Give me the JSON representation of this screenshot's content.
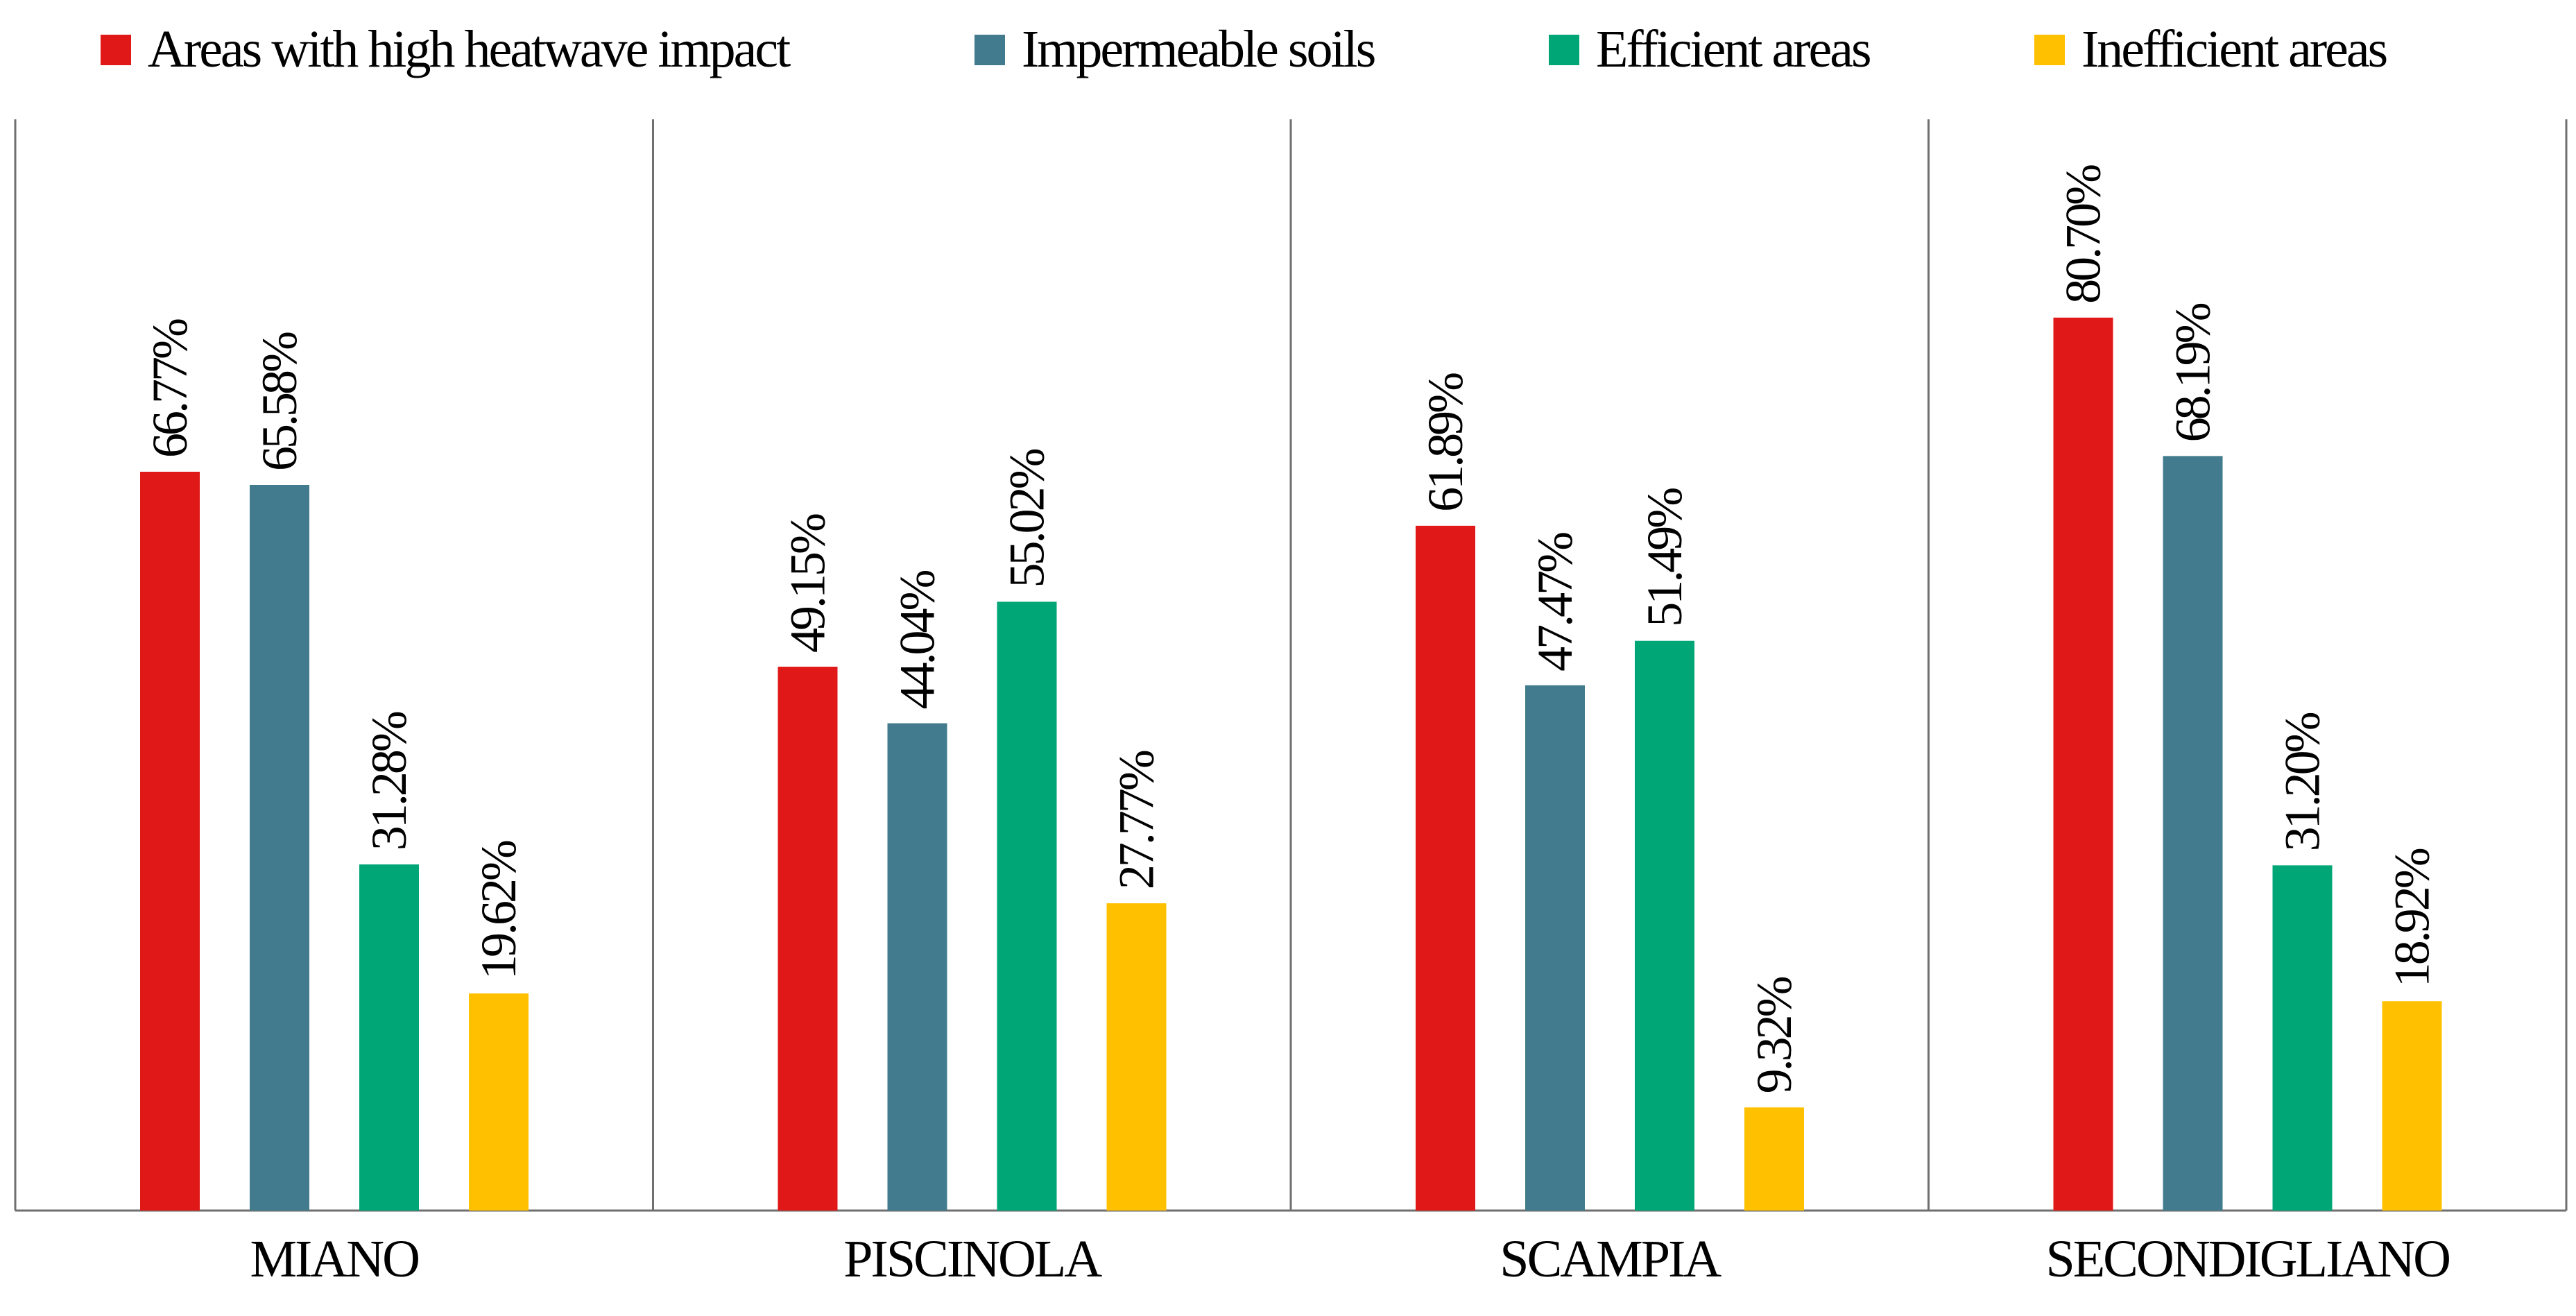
{
  "chart_data": {
    "type": "bar",
    "categories": [
      "MIANO",
      "PISCINOLA",
      "SCAMPIA",
      "SECONDIGLIANO"
    ],
    "series": [
      {
        "name": "Areas with high heatwave impact",
        "color": "#e01818",
        "values": [
          66.77,
          49.15,
          61.89,
          80.7
        ],
        "labels": [
          "66.77%",
          "49.15%",
          "61.89%",
          "80.70%"
        ]
      },
      {
        "name": "Impermeable soils",
        "color": "#417b8d",
        "values": [
          65.58,
          44.04,
          47.47,
          68.19
        ],
        "labels": [
          "65.58%",
          "44.04%",
          "47.47%",
          "68.19%"
        ]
      },
      {
        "name": "Efficient areas",
        "color": "#00a676",
        "values": [
          31.28,
          55.02,
          51.49,
          31.2
        ],
        "labels": [
          "31.28%",
          "55.02%",
          "51.49%",
          "31.20%"
        ]
      },
      {
        "name": "Inefficient areas",
        "color": "#ffc000",
        "values": [
          19.62,
          27.77,
          9.32,
          18.92
        ],
        "labels": [
          "19.62%",
          "27.77%",
          "9.32%",
          "18.92%"
        ]
      }
    ],
    "ylim": [
      0,
      100
    ],
    "grid": false,
    "legend": "top",
    "title": "",
    "xlabel": "",
    "ylabel": ""
  }
}
